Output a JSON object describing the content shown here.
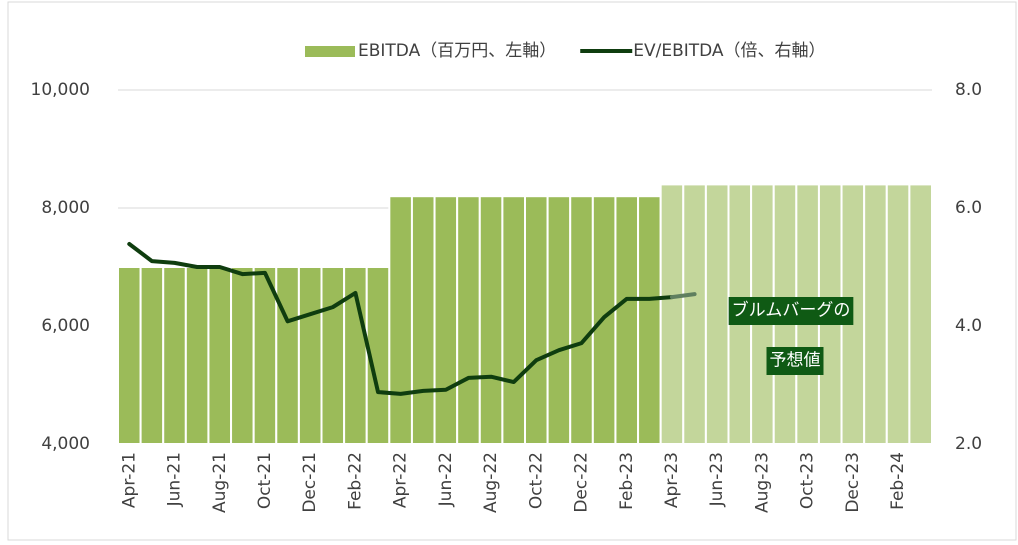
{
  "chart_data": {
    "type": "bar_line",
    "categories": [
      "Apr-21",
      null,
      "Jun-21",
      null,
      "Aug-21",
      null,
      "Oct-21",
      null,
      "Dec-21",
      null,
      "Feb-22",
      null,
      "Apr-22",
      null,
      "Jun-22",
      null,
      "Aug-22",
      null,
      "Oct-22",
      null,
      "Dec-22",
      null,
      "Feb-23",
      null,
      "Apr-23",
      null,
      "Jun-23",
      null,
      "Aug-23",
      null,
      "Oct-23",
      null,
      "Dec-23",
      null,
      "Feb-24",
      null
    ],
    "series": [
      {
        "name": "EBITDA（百万円、左軸）",
        "type": "bar",
        "color": "#9bbb59",
        "colors": [
          "#9bbb59",
          "#9bbb59",
          "#9bbb59",
          "#9bbb59",
          "#9bbb59",
          "#9bbb59",
          "#9bbb59",
          "#9bbb59",
          "#9bbb59",
          "#9bbb59",
          "#9bbb59",
          "#9bbb59",
          "#9bbb59",
          "#9bbb59",
          "#9bbb59",
          "#9bbb59",
          "#9bbb59",
          "#9bbb59",
          "#9bbb59",
          "#9bbb59",
          "#9bbb59",
          "#9bbb59",
          "#9bbb59",
          "#9bbb59",
          "#c3d69b",
          "#c3d69b",
          "#c3d69b",
          "#c3d69b",
          "#c3d69b",
          "#c3d69b",
          "#c3d69b",
          "#c3d69b",
          "#c3d69b",
          "#c3d69b",
          "#c3d69b",
          "#c3d69b"
        ],
        "values": [
          7000,
          7000,
          7000,
          7000,
          7000,
          7000,
          7000,
          7000,
          7000,
          7000,
          7000,
          7000,
          8200,
          8200,
          8200,
          8200,
          8200,
          8200,
          8200,
          8200,
          8200,
          8200,
          8200,
          8200,
          8400,
          8400,
          8400,
          8400,
          8400,
          8400,
          8400,
          8400,
          8400,
          8400,
          8400,
          8400
        ]
      },
      {
        "name": "EV/EBITDA（倍、右軸）",
        "type": "line",
        "axis": "y2",
        "color": "#0f3d0f",
        "values": [
          5.39,
          5.1,
          5.07,
          5.0,
          5.0,
          4.88,
          4.9,
          4.08,
          4.2,
          4.32,
          4.56,
          2.88,
          2.85,
          2.9,
          2.92,
          3.12,
          3.14,
          3.05,
          3.42,
          3.59,
          3.71,
          4.15,
          4.46,
          4.46,
          4.49,
          null,
          null,
          null,
          null,
          null,
          null,
          null,
          null,
          null,
          null,
          null
        ]
      },
      {
        "type": "line",
        "axis": "y2",
        "color": "#5f7f5f",
        "values": [
          null,
          null,
          null,
          null,
          null,
          null,
          null,
          null,
          null,
          null,
          null,
          null,
          null,
          null,
          null,
          null,
          null,
          null,
          null,
          null,
          null,
          null,
          null,
          null,
          4.49,
          4.54,
          null,
          null,
          null,
          null,
          null,
          null,
          null,
          null,
          null,
          null
        ]
      }
    ],
    "ylim": [
      4000,
      10000
    ],
    "yticks": [
      {
        "value": 4000,
        "label": "4,000"
      },
      {
        "value": 6000,
        "label": "6,000"
      },
      {
        "value": 8000,
        "label": "8,000"
      },
      {
        "value": 10000,
        "label": "10,000"
      }
    ],
    "y2lim": [
      2.0,
      8.0
    ],
    "y2ticks": [
      {
        "value": 2.0,
        "label": "2.0"
      },
      {
        "value": 4.0,
        "label": "4.0"
      },
      {
        "value": 6.0,
        "label": "6.0"
      },
      {
        "value": 8.0,
        "label": "8.0"
      }
    ],
    "grid": true,
    "legend": "top",
    "annotations": [
      "ブルムバーグの",
      "予想値"
    ]
  }
}
